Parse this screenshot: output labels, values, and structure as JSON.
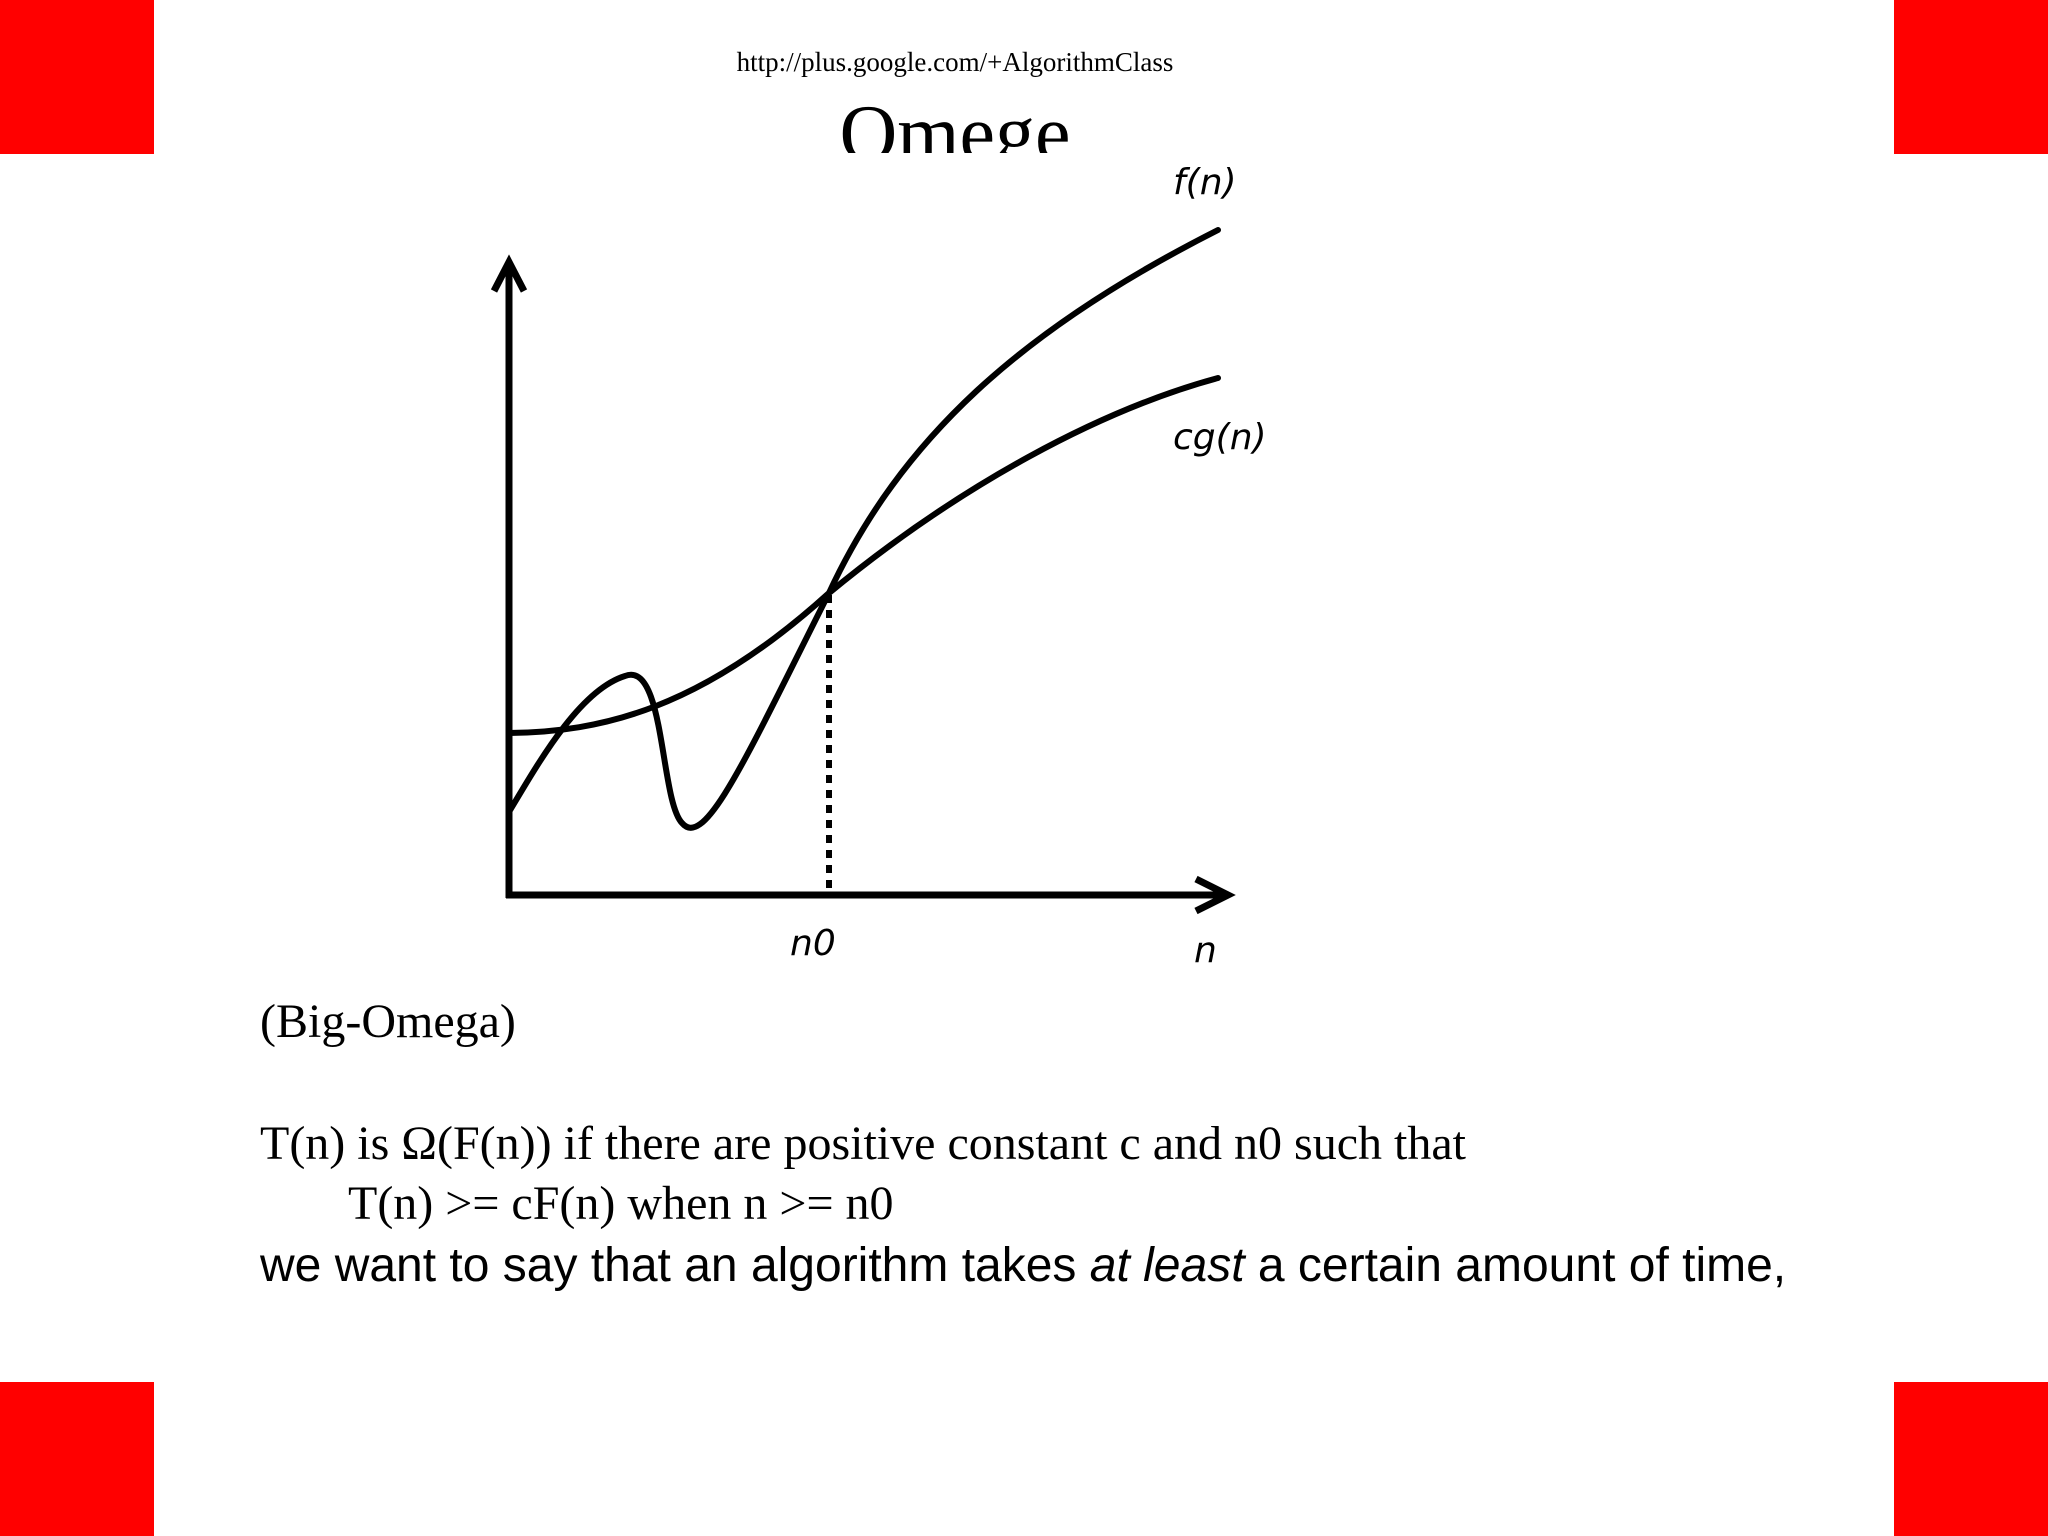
{
  "header": {
    "url": "http://plus.google.com/+AlgorithmClass",
    "title": "Omege"
  },
  "diagram": {
    "curve_f_label": "f(n)",
    "curve_cg_label": "cg(n)",
    "n0_label": "n0",
    "x_axis_label": "n"
  },
  "body": {
    "subtitle": "(Big-Omega)",
    "definition_line1": "T(n) is Ω(F(n)) if there are positive constant c and n0 such that",
    "definition_line2": "T(n) >= cF(n) when n >= n0",
    "note_before": "we want to say that an algorithm takes ",
    "note_emphasis": "at least",
    "note_after": " a certain amount of time,"
  },
  "colors": {
    "corner": "#ff0000",
    "text": "#000000",
    "background": "#ffffff"
  }
}
